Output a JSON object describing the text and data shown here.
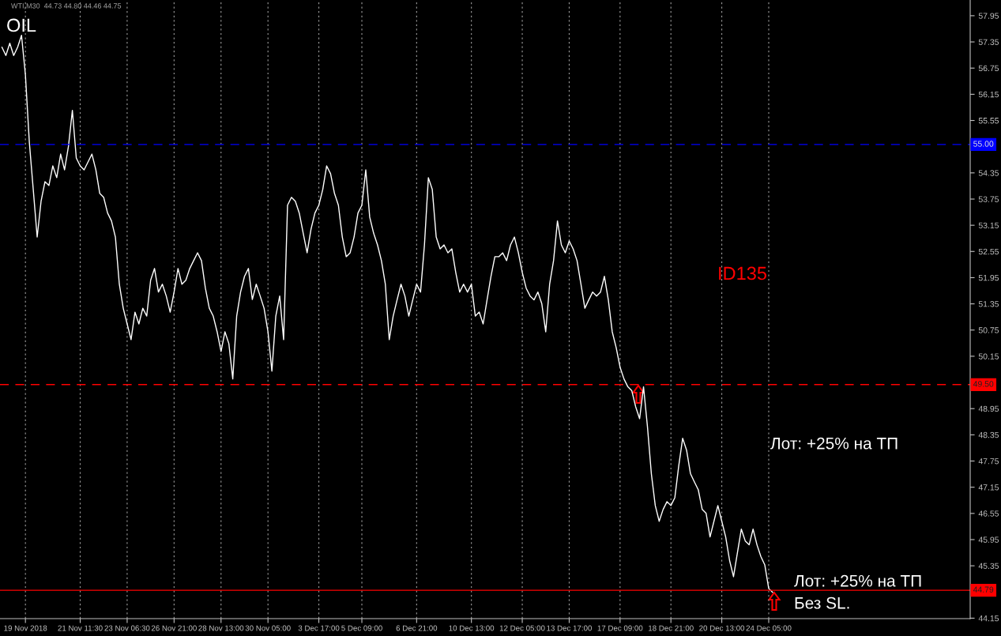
{
  "chart_data": {
    "type": "line",
    "title": "OIL",
    "subtitle": "WTI,M30  44.73 44.80 44.46 44.75",
    "categories": [
      null,
      null,
      null,
      null,
      null,
      null,
      "19 Nov 2018",
      null,
      null,
      null,
      null,
      null,
      null,
      null,
      null,
      null,
      null,
      null,
      null,
      null,
      "21 Nov 11:30",
      null,
      null,
      null,
      null,
      null,
      null,
      null,
      null,
      null,
      null,
      null,
      "23 Nov 06:30",
      null,
      null,
      null,
      null,
      null,
      null,
      null,
      null,
      null,
      null,
      null,
      "26 Nov 21:00",
      null,
      null,
      null,
      null,
      null,
      null,
      null,
      null,
      null,
      null,
      null,
      "28 Nov 13:00",
      null,
      null,
      null,
      null,
      null,
      null,
      null,
      null,
      null,
      null,
      null,
      "30 Nov 05:00",
      null,
      null,
      null,
      null,
      null,
      null,
      null,
      null,
      null,
      null,
      null,
      null,
      "3 Dec 17:00",
      null,
      null,
      null,
      null,
      null,
      null,
      null,
      null,
      null,
      null,
      "5 Dec 09:00",
      null,
      null,
      null,
      null,
      null,
      null,
      null,
      null,
      null,
      null,
      null,
      null,
      null,
      "6 Dec 21:00",
      null,
      null,
      null,
      null,
      null,
      null,
      null,
      null,
      null,
      null,
      null,
      null,
      null,
      "10 Dec 13:00",
      null,
      null,
      null,
      null,
      null,
      null,
      null,
      null,
      null,
      null,
      null,
      null,
      "12 Dec 05:00",
      null,
      null,
      null,
      null,
      null,
      null,
      null,
      null,
      null,
      null,
      null,
      "13 Dec 17:00",
      null,
      null,
      null,
      null,
      null,
      null,
      null,
      null,
      null,
      null,
      null,
      null,
      "17 Dec 09:00",
      null,
      null,
      null,
      null,
      null,
      null,
      null,
      null,
      null,
      null,
      null,
      null,
      "18 Dec 21:00",
      null,
      null,
      null,
      null,
      null,
      null,
      null,
      null,
      null,
      null,
      null,
      null,
      "20 Dec 13:00",
      null,
      null,
      null,
      null,
      null,
      null,
      null,
      null,
      null,
      null,
      null,
      "24 Dec 05:00",
      null,
      null,
      null,
      null,
      null,
      null,
      null,
      null,
      null,
      null,
      null,
      null,
      null,
      null,
      null,
      null,
      null,
      null,
      null,
      null,
      null,
      null,
      null,
      null,
      null,
      null,
      null,
      null,
      null,
      null,
      null,
      null,
      null,
      null,
      null,
      null,
      null,
      null,
      null,
      null,
      null,
      null,
      null,
      null,
      null,
      null,
      null,
      null,
      null,
      null,
      null
    ],
    "series": [
      {
        "color": "#ffffff",
        "values": [
          57.23,
          57.04,
          57.32,
          57.04,
          57.23,
          57.5,
          56.59,
          55.05,
          53.97,
          52.88,
          53.7,
          54.15,
          54.06,
          54.51,
          54.24,
          54.78,
          54.42,
          54.96,
          55.78,
          54.69,
          54.51,
          54.42,
          54.6,
          54.78,
          54.42,
          53.88,
          53.79,
          53.43,
          53.25,
          52.88,
          51.8,
          51.25,
          50.89,
          50.53,
          51.16,
          50.89,
          51.25,
          51.07,
          51.89,
          52.16,
          51.62,
          51.8,
          51.53,
          51.16,
          51.62,
          52.16,
          51.8,
          51.89,
          52.16,
          52.34,
          52.52,
          52.34,
          51.71,
          51.25,
          51.07,
          50.71,
          50.26,
          50.71,
          50.44,
          49.63,
          51.07,
          51.62,
          51.98,
          52.16,
          51.45,
          51.8,
          51.53,
          51.25,
          50.71,
          49.81,
          51.07,
          51.53,
          50.53,
          53.61,
          53.79,
          53.7,
          53.43,
          52.97,
          52.52,
          53.06,
          53.43,
          53.61,
          53.97,
          54.51,
          54.33,
          53.88,
          53.61,
          52.88,
          52.43,
          52.52,
          52.88,
          53.43,
          53.61,
          54.42,
          53.34,
          52.97,
          52.7,
          52.34,
          51.8,
          50.53,
          51.07,
          51.44,
          51.8,
          51.53,
          51.07,
          51.44,
          51.8,
          51.62,
          52.7,
          54.24,
          53.97,
          52.88,
          52.61,
          52.7,
          52.52,
          52.61,
          52.07,
          51.62,
          51.8,
          51.62,
          51.8,
          51.07,
          51.16,
          50.89,
          51.44,
          51.98,
          52.43,
          52.43,
          52.52,
          52.34,
          52.7,
          52.88,
          52.52,
          52.07,
          51.71,
          51.53,
          51.44,
          51.62,
          51.35,
          50.71,
          51.8,
          52.34,
          53.25,
          52.7,
          52.52,
          52.79,
          52.61,
          52.34,
          51.8,
          51.25,
          51.44,
          51.62,
          51.53,
          51.62,
          51.98,
          51.44,
          50.71,
          50.35,
          49.9,
          49.63,
          49.45,
          49.36,
          48.99,
          48.72,
          49.45,
          48.54,
          47.46,
          46.73,
          46.37,
          46.64,
          46.82,
          46.73,
          46.91,
          47.64,
          48.27,
          48.0,
          47.46,
          47.27,
          47.09,
          46.64,
          46.55,
          46.01,
          46.37,
          46.73,
          46.37,
          46.01,
          45.47,
          45.1,
          45.65,
          46.19,
          45.92,
          45.83,
          46.19,
          45.83,
          45.56,
          45.37,
          44.83,
          44.74,
          null,
          null,
          null,
          null,
          null,
          null,
          null,
          null,
          null,
          null,
          null,
          null,
          null,
          null,
          null,
          null,
          null,
          null,
          null,
          null,
          null,
          null,
          null,
          null,
          null,
          null,
          null,
          null,
          null,
          null,
          null,
          null,
          null,
          null,
          null,
          null,
          null,
          null,
          null,
          null,
          null,
          null,
          null,
          null,
          null,
          null,
          null,
          null,
          null,
          null
        ]
      }
    ],
    "ylim": [
      44.14,
      58.31
    ],
    "yticks": [
      57.95,
      57.35,
      56.75,
      56.15,
      55.55,
      54.35,
      53.75,
      53.15,
      52.55,
      51.95,
      51.35,
      50.75,
      50.15,
      48.95,
      48.35,
      47.75,
      47.15,
      46.55,
      45.95,
      45.35,
      44.15
    ],
    "grid": "x",
    "ref_lines": [
      {
        "axis": "y",
        "value": 55.0,
        "label": "55.00",
        "color": "#0000ff",
        "line_style": "dashed"
      },
      {
        "axis": "y",
        "value": 49.5,
        "label": "49.50",
        "color": "#ff0000",
        "line_style": "dashed"
      },
      {
        "axis": "y",
        "value": 44.79,
        "label": "44.79",
        "color": "#ff0000",
        "line_style": "solid"
      }
    ],
    "annotations": [
      "ID135",
      "Лот: +25% на ТП",
      "Лот: +25% на ТП",
      "Без SL."
    ]
  }
}
